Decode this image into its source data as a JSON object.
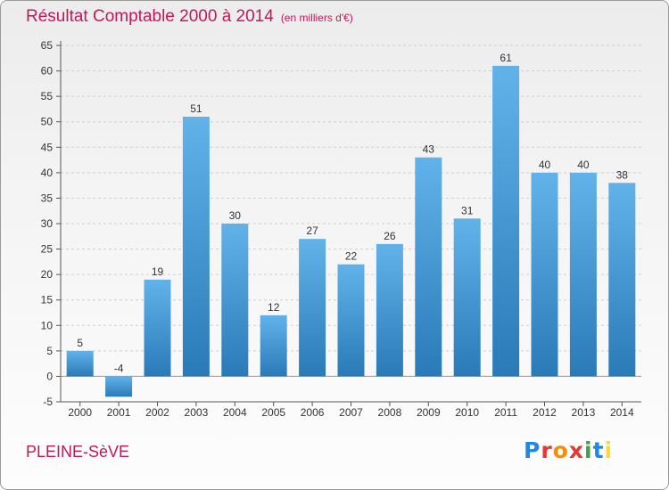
{
  "title": "Résultat Comptable 2000 à 2014",
  "subtitle": "(en milliers d'€)",
  "commune": "PLEINE-SèVE",
  "logo": {
    "letters": [
      "P",
      "r",
      "o",
      "x",
      "i",
      "t",
      "i"
    ],
    "colors": [
      "#1e88e5",
      "#e53935",
      "#fb8c00",
      "#e53935",
      "#43a047",
      "#1e88e5",
      "#fdd835"
    ]
  },
  "colors": {
    "bar_top": "#62b2ea",
    "bar_bottom": "#2a7ab8",
    "accent": "#c2185b",
    "grid": "#cfcfcf",
    "axis": "#555555"
  },
  "chart_data": {
    "type": "bar",
    "categories": [
      "2000",
      "2001",
      "2002",
      "2003",
      "2004",
      "2005",
      "2006",
      "2007",
      "2008",
      "2009",
      "2010",
      "2011",
      "2012",
      "2013",
      "2014"
    ],
    "values": [
      5,
      -4,
      19,
      51,
      30,
      12,
      27,
      22,
      26,
      43,
      31,
      61,
      40,
      40,
      38
    ],
    "yticks": [
      -5,
      0,
      5,
      10,
      15,
      20,
      25,
      30,
      35,
      40,
      45,
      50,
      55,
      60,
      65
    ],
    "ylim": [
      -5,
      65
    ],
    "grid": true,
    "data_labels": true
  }
}
